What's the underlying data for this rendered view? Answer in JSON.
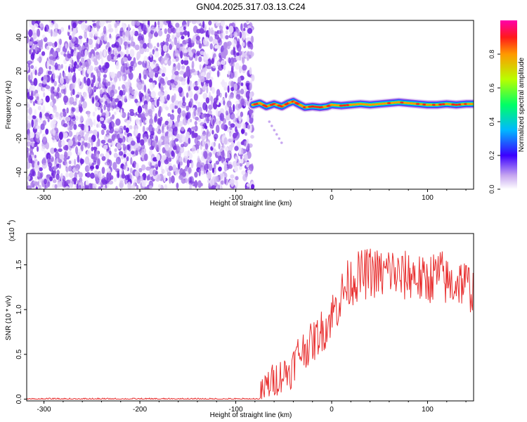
{
  "title": "GN04.2025.317.03.13.C24",
  "chart_data": [
    {
      "type": "heatmap",
      "xlabel": "Height of straight line (km)",
      "ylabel": "Frequency (Hz)",
      "xlim": [
        -318,
        148
      ],
      "ylim": [
        -50,
        50
      ],
      "xticks": [
        -300,
        -200,
        -100,
        0,
        100
      ],
      "yticks": [
        -40,
        -20,
        0,
        20,
        40
      ],
      "noise_region_x": [
        -318,
        -82
      ],
      "signal_trace": {
        "x": [
          -82,
          -75,
          -68,
          -60,
          -52,
          -45,
          -40,
          -35,
          -28,
          -20,
          -12,
          -5,
          0,
          10,
          20,
          30,
          40,
          50,
          60,
          70,
          80,
          90,
          100,
          110,
          120,
          130,
          140,
          148
        ],
        "y": [
          0,
          1,
          -1,
          0.5,
          -1,
          1,
          2,
          0.5,
          -1.5,
          -1,
          -1.5,
          -1,
          0,
          -0.5,
          0,
          0.5,
          0,
          0.5,
          1,
          1.5,
          1,
          0.5,
          0,
          0,
          0.5,
          0,
          0.5,
          0.5
        ]
      },
      "colorbar": {
        "label": "Normalized spectral amplitude",
        "range": [
          0,
          1
        ],
        "ticks": [
          "0.0",
          "0.2",
          "0.4",
          "0.6",
          "0.8"
        ]
      },
      "grid": false
    },
    {
      "type": "line",
      "xlabel": "Height of straight line (km)",
      "ylabel": "SNR (10 * v/v)",
      "multiplier_label": "(x10",
      "multiplier_exp": "4",
      "xlim": [
        -318,
        148
      ],
      "ylim": [
        -0.02,
        1.85
      ],
      "xticks": [
        -300,
        -200,
        -100,
        0,
        100
      ],
      "yticks": [
        "0.0",
        "0.5",
        "1.0",
        "1.5"
      ],
      "series": [
        {
          "color": "#e83030",
          "x": [
            -318,
            -250,
            -150,
            -75,
            -68,
            -62,
            -55,
            -48,
            -42,
            -36,
            -30,
            -24,
            -18,
            -12,
            -6,
            0,
            6,
            12,
            18,
            24,
            30,
            36,
            42,
            48,
            54,
            60,
            66,
            72,
            78,
            84,
            90,
            96,
            102,
            108,
            114,
            120,
            126,
            132,
            138,
            144,
            148
          ],
          "y": [
            0.0,
            0.0,
            0.0,
            0.0,
            0.15,
            0.2,
            0.25,
            0.3,
            0.32,
            0.5,
            0.55,
            0.6,
            0.65,
            0.75,
            0.8,
            0.95,
            1.05,
            1.2,
            1.3,
            1.35,
            1.38,
            1.4,
            1.42,
            1.4,
            1.38,
            1.45,
            1.4,
            1.35,
            1.38,
            1.4,
            1.36,
            1.3,
            1.35,
            1.38,
            1.4,
            1.3,
            1.28,
            1.32,
            1.3,
            1.25,
            1.2
          ]
        }
      ],
      "grid": false
    }
  ]
}
